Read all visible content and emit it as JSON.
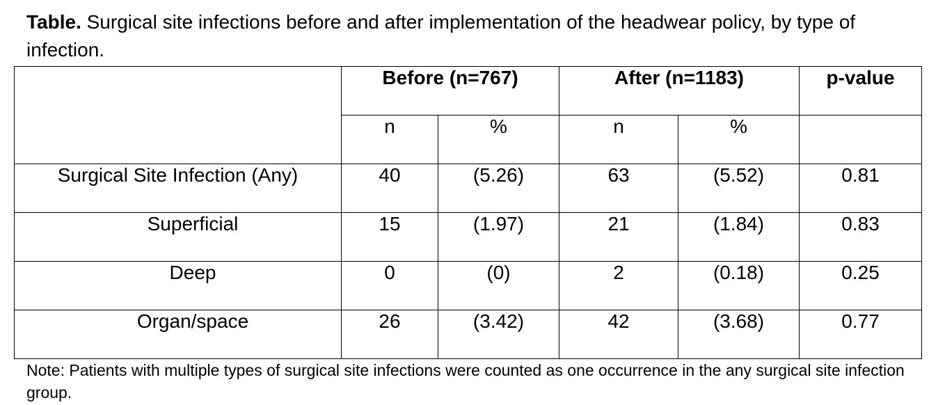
{
  "caption": {
    "lead": "Table.",
    "text": "Surgical site infections before and after implementation of the headwear policy, by type of infection."
  },
  "table": {
    "group_headers": [
      "Before (n=767)",
      "After (n=1183)",
      "p-value"
    ],
    "sub_headers": [
      "n",
      "%",
      "n",
      "%"
    ],
    "rows": [
      {
        "label": "Surgical Site Infection (Any)",
        "before_n": "40",
        "before_pct": "(5.26)",
        "after_n": "63",
        "after_pct": "(5.52)",
        "p": "0.81"
      },
      {
        "label": "Superficial",
        "before_n": "15",
        "before_pct": "(1.97)",
        "after_n": "21",
        "after_pct": "(1.84)",
        "p": "0.83"
      },
      {
        "label": "Deep",
        "before_n": "0",
        "before_pct": "(0)",
        "after_n": "2",
        "after_pct": "(0.18)",
        "p": "0.25"
      },
      {
        "label": "Organ/space",
        "before_n": "26",
        "before_pct": "(3.42)",
        "after_n": "42",
        "after_pct": "(3.68)",
        "p": "0.77"
      }
    ]
  },
  "note": "Note: Patients with multiple types of surgical site infections were counted as one occurrence in the any surgical site infection group."
}
